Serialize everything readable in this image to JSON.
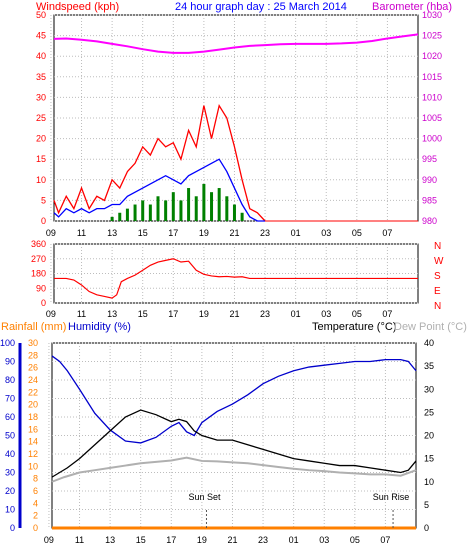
{
  "chart_data": [
    {
      "type": "line",
      "title": "24 hour graph day : 25 March 2014",
      "y_left_label": "Windspeed (kph)",
      "y_right_label": "Barometer (hba)",
      "y_left_ticks": [
        0,
        5,
        10,
        15,
        20,
        25,
        30,
        35,
        40,
        45,
        50
      ],
      "y_right_ticks": [
        980,
        985,
        990,
        995,
        1000,
        1005,
        1010,
        1015,
        1020,
        1025,
        1030
      ],
      "x_ticks": [
        "11",
        "13",
        "15",
        "17",
        "19",
        "21",
        "23",
        "01",
        "03",
        "05",
        "07",
        "09"
      ],
      "ylim_left": [
        0,
        50
      ],
      "ylim_right": [
        980,
        1030
      ],
      "grid": true,
      "colors": {
        "gust": "#ff0000",
        "average": "#0000ff",
        "bar_wind": "#008000",
        "barometer": "#ff00ff"
      },
      "series": [
        {
          "key": "barometer",
          "axis": "right",
          "x": [
            9.2,
            10,
            11,
            12,
            13,
            14,
            15,
            16,
            17,
            18,
            19,
            20,
            21,
            22,
            23,
            24,
            25,
            26,
            27,
            28,
            29,
            30,
            31,
            32,
            33
          ],
          "y": [
            1024.2,
            1024.3,
            1024,
            1023.6,
            1023,
            1022.4,
            1021.7,
            1021.1,
            1020.8,
            1020.8,
            1021.1,
            1021.6,
            1022.1,
            1022.5,
            1022.7,
            1022.9,
            1023,
            1023,
            1023,
            1023.1,
            1023.3,
            1023.7,
            1024.3,
            1024.8,
            1025.3
          ]
        },
        {
          "key": "gust",
          "axis": "left",
          "x": [
            9.2,
            9.5,
            10,
            10.5,
            11,
            11.5,
            12,
            12.5,
            13,
            13.5,
            14,
            14.5,
            15,
            15.5,
            16,
            16.5,
            17,
            17.5,
            18,
            18.5,
            19,
            19.5,
            20,
            20.5,
            21,
            21.5,
            22,
            22.5,
            23
          ],
          "y": [
            5,
            2,
            6,
            3,
            8,
            3,
            6,
            5,
            10,
            8,
            12,
            14,
            18,
            16,
            20,
            18,
            19,
            15,
            22,
            18,
            28,
            20,
            28,
            25,
            18,
            10,
            3,
            2,
            0
          ]
        },
        {
          "key": "average",
          "axis": "left",
          "x": [
            9.2,
            9.5,
            10,
            10.5,
            11,
            11.5,
            12,
            12.5,
            13,
            13.5,
            14,
            14.5,
            15,
            15.5,
            16,
            16.5,
            17,
            17.5,
            18,
            18.5,
            19,
            19.5,
            20,
            20.5,
            21,
            21.5,
            22,
            22.5,
            23
          ],
          "y": [
            2,
            1,
            3,
            2,
            3,
            2,
            3,
            3,
            4,
            4,
            6,
            7,
            8,
            9,
            10,
            11,
            10,
            9,
            11,
            12,
            13,
            14,
            15,
            12,
            8,
            4,
            1,
            0,
            0
          ]
        },
        {
          "key": "bar_wind",
          "axis": "left",
          "x": [
            9.2,
            10,
            11,
            12,
            13,
            13.5,
            14,
            14.5,
            15,
            15.5,
            16,
            16.5,
            17,
            17.5,
            18,
            18.5,
            19,
            19.5,
            20,
            20.5,
            21,
            21.5,
            22
          ],
          "y": [
            0,
            0,
            0,
            0,
            1,
            2,
            3,
            4,
            5,
            4,
            6,
            5,
            7,
            5,
            8,
            6,
            9,
            7,
            8,
            6,
            4,
            2,
            0
          ]
        }
      ]
    },
    {
      "type": "line",
      "y_ticks": [
        0,
        90,
        180,
        270,
        360
      ],
      "x_ticks": [
        "11",
        "13",
        "15",
        "17",
        "19",
        "21",
        "23",
        "01",
        "03",
        "05",
        "07",
        "09"
      ],
      "compass_labels": [
        "N",
        "W",
        "S",
        "E",
        "N"
      ],
      "ylim": [
        0,
        360
      ],
      "colors": {
        "direction": "#ff0000"
      },
      "series": [
        {
          "key": "direction",
          "x": [
            9.2,
            10,
            10.5,
            11,
            11.5,
            12,
            12.5,
            13,
            13.3,
            13.6,
            14,
            14.5,
            15,
            15.5,
            16,
            16.5,
            17,
            17.5,
            18,
            18.5,
            19,
            19.5,
            20,
            20.5,
            21,
            21.5,
            22,
            23,
            25,
            27,
            29,
            31,
            33
          ],
          "y": [
            150,
            150,
            140,
            110,
            70,
            50,
            40,
            30,
            50,
            130,
            150,
            170,
            200,
            230,
            250,
            260,
            270,
            250,
            255,
            200,
            175,
            165,
            160,
            162,
            158,
            160,
            150,
            150,
            150,
            150,
            150,
            150,
            150
          ]
        }
      ]
    },
    {
      "type": "line",
      "y_left_label": "Rainfall (mm)",
      "y_left2_label": "Humidity (%)",
      "y_right_label": "Temperature (°C)",
      "y_right2_label": "Dew Point (°C)",
      "y_left_ticks_rain": [
        0,
        2,
        4,
        6,
        8,
        10,
        12,
        14,
        16,
        18,
        20,
        22,
        24,
        26,
        28,
        30
      ],
      "y_left_ticks_humidity": [
        0,
        10,
        20,
        30,
        40,
        50,
        60,
        70,
        80,
        90,
        100
      ],
      "y_right_ticks_temp": [
        0,
        5,
        10,
        15,
        20,
        25,
        30,
        35,
        40
      ],
      "x_ticks": [
        "11",
        "13",
        "15",
        "17",
        "19",
        "21",
        "23",
        "01",
        "03",
        "05",
        "07",
        "09"
      ],
      "annotations": [
        "Sun Set",
        "Sun Rise"
      ],
      "colors": {
        "humidity": "#0000cc",
        "temperature": "#000000",
        "dew_point": "#b0b0b0",
        "rainfall": "#ff8000"
      },
      "series": [
        {
          "key": "humidity",
          "axis": "left2",
          "x": [
            9.2,
            9.7,
            10.2,
            11,
            12,
            13,
            14,
            15,
            16,
            17,
            17.5,
            18,
            18.5,
            19,
            20,
            21,
            22,
            23,
            24,
            25,
            26,
            27,
            28,
            29,
            30,
            31,
            32,
            32.5,
            33
          ],
          "y": [
            93,
            90,
            85,
            75,
            62,
            53,
            47,
            46,
            49,
            55,
            57,
            52,
            50,
            57,
            63,
            67,
            72,
            78,
            82,
            85,
            87,
            88,
            89,
            90,
            90,
            91,
            91,
            90,
            85
          ]
        },
        {
          "key": "temperature",
          "axis": "right",
          "x": [
            9.2,
            9.7,
            10.2,
            11,
            12,
            13,
            14,
            15,
            16,
            17,
            17.5,
            18,
            18.5,
            19,
            20,
            21,
            22,
            23,
            24,
            25,
            26,
            27,
            28,
            29,
            30,
            31,
            32,
            32.5,
            33
          ],
          "y": [
            11,
            12,
            13,
            15,
            18,
            21,
            24,
            25.5,
            24.5,
            23,
            23.5,
            23,
            21,
            20,
            19,
            19,
            18,
            17,
            16,
            15,
            14.5,
            14,
            13.5,
            13.5,
            13,
            12.5,
            12,
            12.5,
            14.5
          ]
        },
        {
          "key": "dew_point",
          "axis": "right",
          "x": [
            9.2,
            10,
            11,
            12,
            13,
            14,
            15,
            16,
            17,
            18,
            19,
            20,
            21,
            22,
            23,
            24,
            25,
            26,
            27,
            28,
            29,
            30,
            31,
            32,
            33
          ],
          "y": [
            10,
            11,
            12,
            12.5,
            13,
            13.5,
            14,
            14.3,
            14.6,
            15.2,
            14.5,
            14.4,
            14.2,
            14,
            13.6,
            13.2,
            12.8,
            12.5,
            12.3,
            12,
            11.8,
            11.6,
            11.6,
            11.3,
            12.5
          ]
        },
        {
          "key": "rainfall",
          "axis": "left",
          "x": [
            9.2,
            33
          ],
          "y": [
            0,
            0
          ]
        }
      ]
    }
  ]
}
